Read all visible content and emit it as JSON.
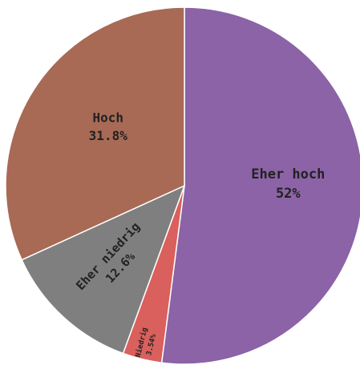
{
  "chart_data": {
    "type": "pie",
    "slices": [
      {
        "name": "Eher hoch",
        "value": 52,
        "value_label": "52%",
        "color": "#8b63a6"
      },
      {
        "name": "Niedrig",
        "value": 3.54,
        "value_label": "3.54%",
        "color": "#d9605c"
      },
      {
        "name": "Eher niedrig",
        "value": 12.6,
        "value_label": "12.6%",
        "color": "#7f7f7f"
      },
      {
        "name": "Hoch",
        "value": 31.8,
        "value_label": "31.8%",
        "color": "#a86a55"
      }
    ],
    "start_angle_deg": 0,
    "direction": "clockwise",
    "labels_inside": true
  }
}
